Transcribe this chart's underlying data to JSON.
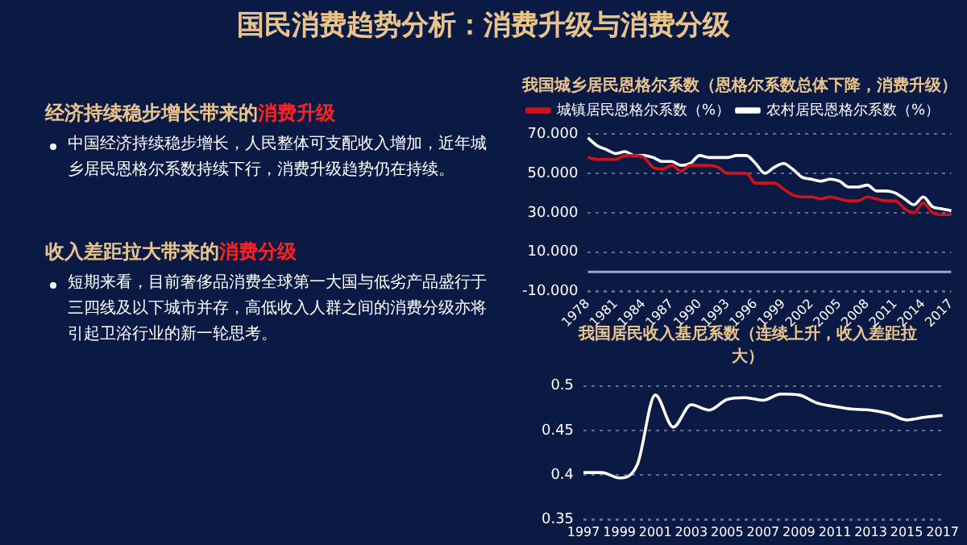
{
  "chart_data": [
    {
      "type": "other",
      "title": "国民消费趋势分析：消费升级与消费分级",
      "annotations": [
        "经济持续稳步增长带来的",
        "消费升级",
        "中国经济持续稳步增长，人民整体可支配收入增加，近年城乡居民恩格尔系数持续下行，消费升级趋势仍在持续。",
        "收入差距拉大带来的",
        "消费分级",
        "短期来看，目前奢侈品消费全球第一大国与低劣产品盛行于三四线及以下城市并存，高低收入人群之间的消费分级亦将引起卫浴行业的新一轮思考。"
      ]
    },
    {
      "type": "line",
      "title": "我国城乡居民恩格尔系数（恩格尔系数总体下降，消费升级）",
      "categories": [
        "1978",
        null,
        null,
        "1981",
        null,
        null,
        "1984",
        null,
        null,
        "1987",
        null,
        null,
        "1990",
        null,
        null,
        "1993",
        null,
        null,
        "1996",
        null,
        null,
        "1999",
        null,
        null,
        "2002",
        null,
        null,
        "2005",
        null,
        null,
        "2008",
        null,
        null,
        "2011",
        null,
        null,
        "2014",
        null,
        null,
        "2017"
      ],
      "series": [
        {
          "name": "城镇居民恩格尔系数（%）",
          "color": "#d0121b",
          "values": [
            58,
            57,
            57,
            57,
            59,
            59,
            58,
            53,
            52,
            54,
            51,
            54,
            54,
            54,
            53,
            50,
            50,
            50,
            45,
            45,
            45,
            42,
            39,
            38,
            38,
            37,
            38,
            37,
            36,
            36,
            38,
            37,
            36,
            36,
            32,
            30,
            35,
            30,
            29,
            29
          ]
        },
        {
          "name": "农村居民恩格尔系数（%）",
          "color": "#ffffff",
          "values": [
            68,
            64,
            62,
            60,
            61,
            59,
            59,
            58,
            56,
            56,
            54,
            55,
            59,
            58,
            58,
            58,
            59,
            59,
            55,
            50,
            53,
            55,
            52,
            48,
            47,
            46,
            47,
            46,
            43,
            43,
            44,
            41,
            41,
            40,
            37,
            34,
            38,
            33,
            32,
            31
          ]
        }
      ],
      "ylim": [
        -10,
        70
      ],
      "yticks": [
        {
          "value": -10,
          "label": "-10.000"
        },
        {
          "value": 10,
          "label": "10.000"
        },
        {
          "value": 30,
          "label": "30.000"
        },
        {
          "value": 50,
          "label": "50.000"
        },
        {
          "value": 70,
          "label": "70.000"
        }
      ],
      "grid": "y",
      "legend": "top",
      "marker": "none",
      "line_style": "solid",
      "ref_lines": [
        {
          "axis": "y",
          "value": 0,
          "color": "#9aa6c8"
        }
      ]
    },
    {
      "type": "line",
      "title": "我国居民收入基尼系数（连续上升，收入差距拉大）",
      "categories": [
        "1997",
        null,
        "1999",
        null,
        "2001",
        null,
        "2003",
        null,
        "2005",
        null,
        "2007",
        null,
        "2009",
        null,
        "2011",
        null,
        "2013",
        null,
        "2015",
        null,
        "2017"
      ],
      "series": [
        {
          "color": "#ffffff",
          "values": [
            0.403,
            0.403,
            0.397,
            0.412,
            0.49,
            0.454,
            0.479,
            0.473,
            0.485,
            0.487,
            0.484,
            0.491,
            0.49,
            0.481,
            0.477,
            0.474,
            0.473,
            0.469,
            0.462,
            0.465,
            0.467
          ]
        }
      ],
      "ylim": [
        0.35,
        0.5
      ],
      "yticks": [
        0.35,
        0.4,
        0.45,
        0.5
      ],
      "grid": "y",
      "legend": false,
      "marker": "none",
      "line_style": "solid"
    }
  ]
}
